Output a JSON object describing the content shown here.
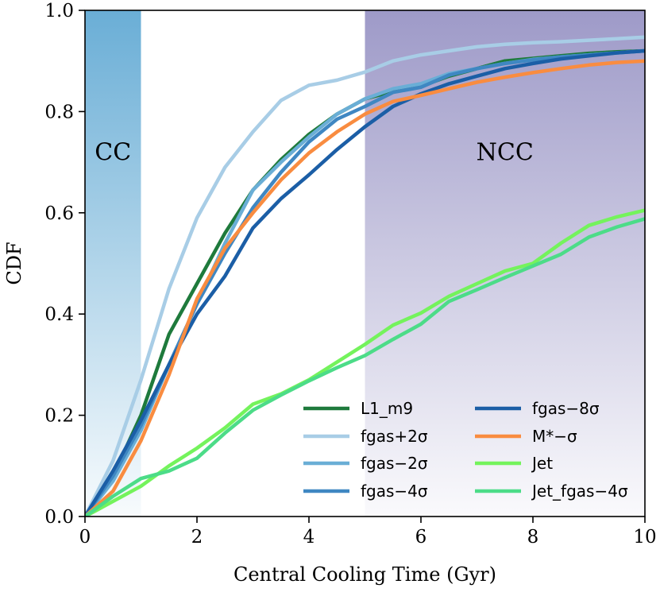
{
  "chart_data": {
    "type": "line",
    "title": "",
    "xlabel": "Central Cooling Time (Gyr)",
    "ylabel": "CDF",
    "xlim": [
      0,
      10
    ],
    "ylim": [
      0,
      1.0
    ],
    "xticks": [
      0,
      2,
      4,
      6,
      8,
      10
    ],
    "xtick_labels": [
      "0",
      "2",
      "4",
      "6",
      "8",
      "10"
    ],
    "yticks": [
      0,
      0.2,
      0.4,
      0.6,
      0.8,
      1.0
    ],
    "ytick_labels": [
      "0.0",
      "0.2",
      "0.4",
      "0.6",
      "0.8",
      "1.0"
    ],
    "grid": false,
    "regions": [
      {
        "label": "CC",
        "x0": 0,
        "x1": 1,
        "color": "#6aaed6",
        "label_y": 0.72
      },
      {
        "label": "NCC",
        "x0": 5,
        "x1": 10,
        "color": "#9e9ac8",
        "label_y": 0.72
      }
    ],
    "legend": {
      "position": "lower-right",
      "columns": 2
    },
    "series": [
      {
        "name": "L1_m9",
        "color": "#1e7a3c",
        "x": [
          0,
          0.5,
          1,
          1.5,
          2,
          2.5,
          3,
          3.5,
          4,
          4.5,
          5,
          5.5,
          6,
          6.5,
          7,
          7.5,
          8,
          8.5,
          9,
          9.5,
          10
        ],
        "y": [
          0,
          0.08,
          0.2,
          0.36,
          0.46,
          0.56,
          0.645,
          0.705,
          0.755,
          0.795,
          0.825,
          0.84,
          0.85,
          0.87,
          0.885,
          0.9,
          0.905,
          0.91,
          0.915,
          0.918,
          0.92
        ]
      },
      {
        "name": "fgas+2σ",
        "color": "#a8cde6",
        "x": [
          0,
          0.5,
          1,
          1.5,
          2,
          2.5,
          3,
          3.5,
          4,
          4.5,
          5,
          5.5,
          6,
          6.5,
          7,
          7.5,
          8,
          8.5,
          9,
          9.5,
          10
        ],
        "y": [
          0,
          0.11,
          0.27,
          0.45,
          0.59,
          0.69,
          0.76,
          0.822,
          0.852,
          0.862,
          0.878,
          0.9,
          0.912,
          0.92,
          0.928,
          0.933,
          0.936,
          0.938,
          0.941,
          0.944,
          0.947
        ]
      },
      {
        "name": "fgas−2σ",
        "color": "#6aaed6",
        "x": [
          0,
          0.5,
          1,
          1.5,
          2,
          2.5,
          3,
          3.5,
          4,
          4.5,
          5,
          5.5,
          6,
          6.5,
          7,
          7.5,
          8,
          8.5,
          9,
          9.5,
          10
        ],
        "y": [
          0,
          0.07,
          0.17,
          0.3,
          0.42,
          0.54,
          0.645,
          0.7,
          0.75,
          0.795,
          0.825,
          0.845,
          0.855,
          0.875,
          0.885,
          0.895,
          0.903,
          0.908,
          0.912,
          0.916,
          0.92
        ]
      },
      {
        "name": "fgas−4σ",
        "color": "#3f87c2",
        "x": [
          0,
          0.5,
          1,
          1.5,
          2,
          2.5,
          3,
          3.5,
          4,
          4.5,
          5,
          5.5,
          6,
          6.5,
          7,
          7.5,
          8,
          8.5,
          9,
          9.5,
          10
        ],
        "y": [
          0,
          0.08,
          0.18,
          0.3,
          0.42,
          0.52,
          0.61,
          0.68,
          0.74,
          0.785,
          0.81,
          0.838,
          0.848,
          0.872,
          0.885,
          0.895,
          0.902,
          0.908,
          0.912,
          0.916,
          0.92
        ]
      },
      {
        "name": "fgas−8σ",
        "color": "#1b5ea6",
        "x": [
          0,
          0.5,
          1,
          1.5,
          2,
          2.5,
          3,
          3.5,
          4,
          4.5,
          5,
          5.5,
          6,
          6.5,
          7,
          7.5,
          8,
          8.5,
          9,
          9.5,
          10
        ],
        "y": [
          0,
          0.09,
          0.19,
          0.3,
          0.4,
          0.475,
          0.57,
          0.628,
          0.675,
          0.725,
          0.77,
          0.81,
          0.835,
          0.855,
          0.87,
          0.885,
          0.895,
          0.904,
          0.91,
          0.916,
          0.92
        ]
      },
      {
        "name": "M*−σ",
        "color": "#f98c40",
        "x": [
          0,
          0.5,
          1,
          1.5,
          2,
          2.5,
          3,
          3.5,
          4,
          4.5,
          5,
          5.5,
          6,
          6.5,
          7,
          7.5,
          8,
          8.5,
          9,
          9.5,
          10
        ],
        "y": [
          0,
          0.05,
          0.15,
          0.28,
          0.43,
          0.53,
          0.6,
          0.665,
          0.718,
          0.76,
          0.795,
          0.82,
          0.832,
          0.845,
          0.858,
          0.868,
          0.877,
          0.885,
          0.892,
          0.897,
          0.9
        ]
      },
      {
        "name": "Jet",
        "color": "#74f35c",
        "x": [
          0,
          0.5,
          1,
          1.5,
          2,
          2.5,
          3,
          3.5,
          4,
          4.5,
          5,
          5.5,
          6,
          6.5,
          7,
          7.5,
          8,
          8.5,
          9,
          9.5,
          10
        ],
        "y": [
          0,
          0.03,
          0.06,
          0.1,
          0.135,
          0.175,
          0.222,
          0.242,
          0.27,
          0.305,
          0.34,
          0.378,
          0.402,
          0.435,
          0.46,
          0.485,
          0.5,
          0.54,
          0.575,
          0.592,
          0.605
        ]
      },
      {
        "name": "Jet_fgas−4σ",
        "color": "#4cdc88",
        "x": [
          0,
          0.5,
          1,
          1.5,
          2,
          2.5,
          3,
          3.5,
          4,
          4.5,
          5,
          5.5,
          6,
          6.5,
          7,
          7.5,
          8,
          8.5,
          9,
          9.5,
          10
        ],
        "y": [
          0,
          0.04,
          0.075,
          0.09,
          0.115,
          0.165,
          0.21,
          0.24,
          0.268,
          0.294,
          0.318,
          0.35,
          0.38,
          0.425,
          0.448,
          0.472,
          0.495,
          0.518,
          0.552,
          0.572,
          0.588
        ]
      }
    ]
  }
}
